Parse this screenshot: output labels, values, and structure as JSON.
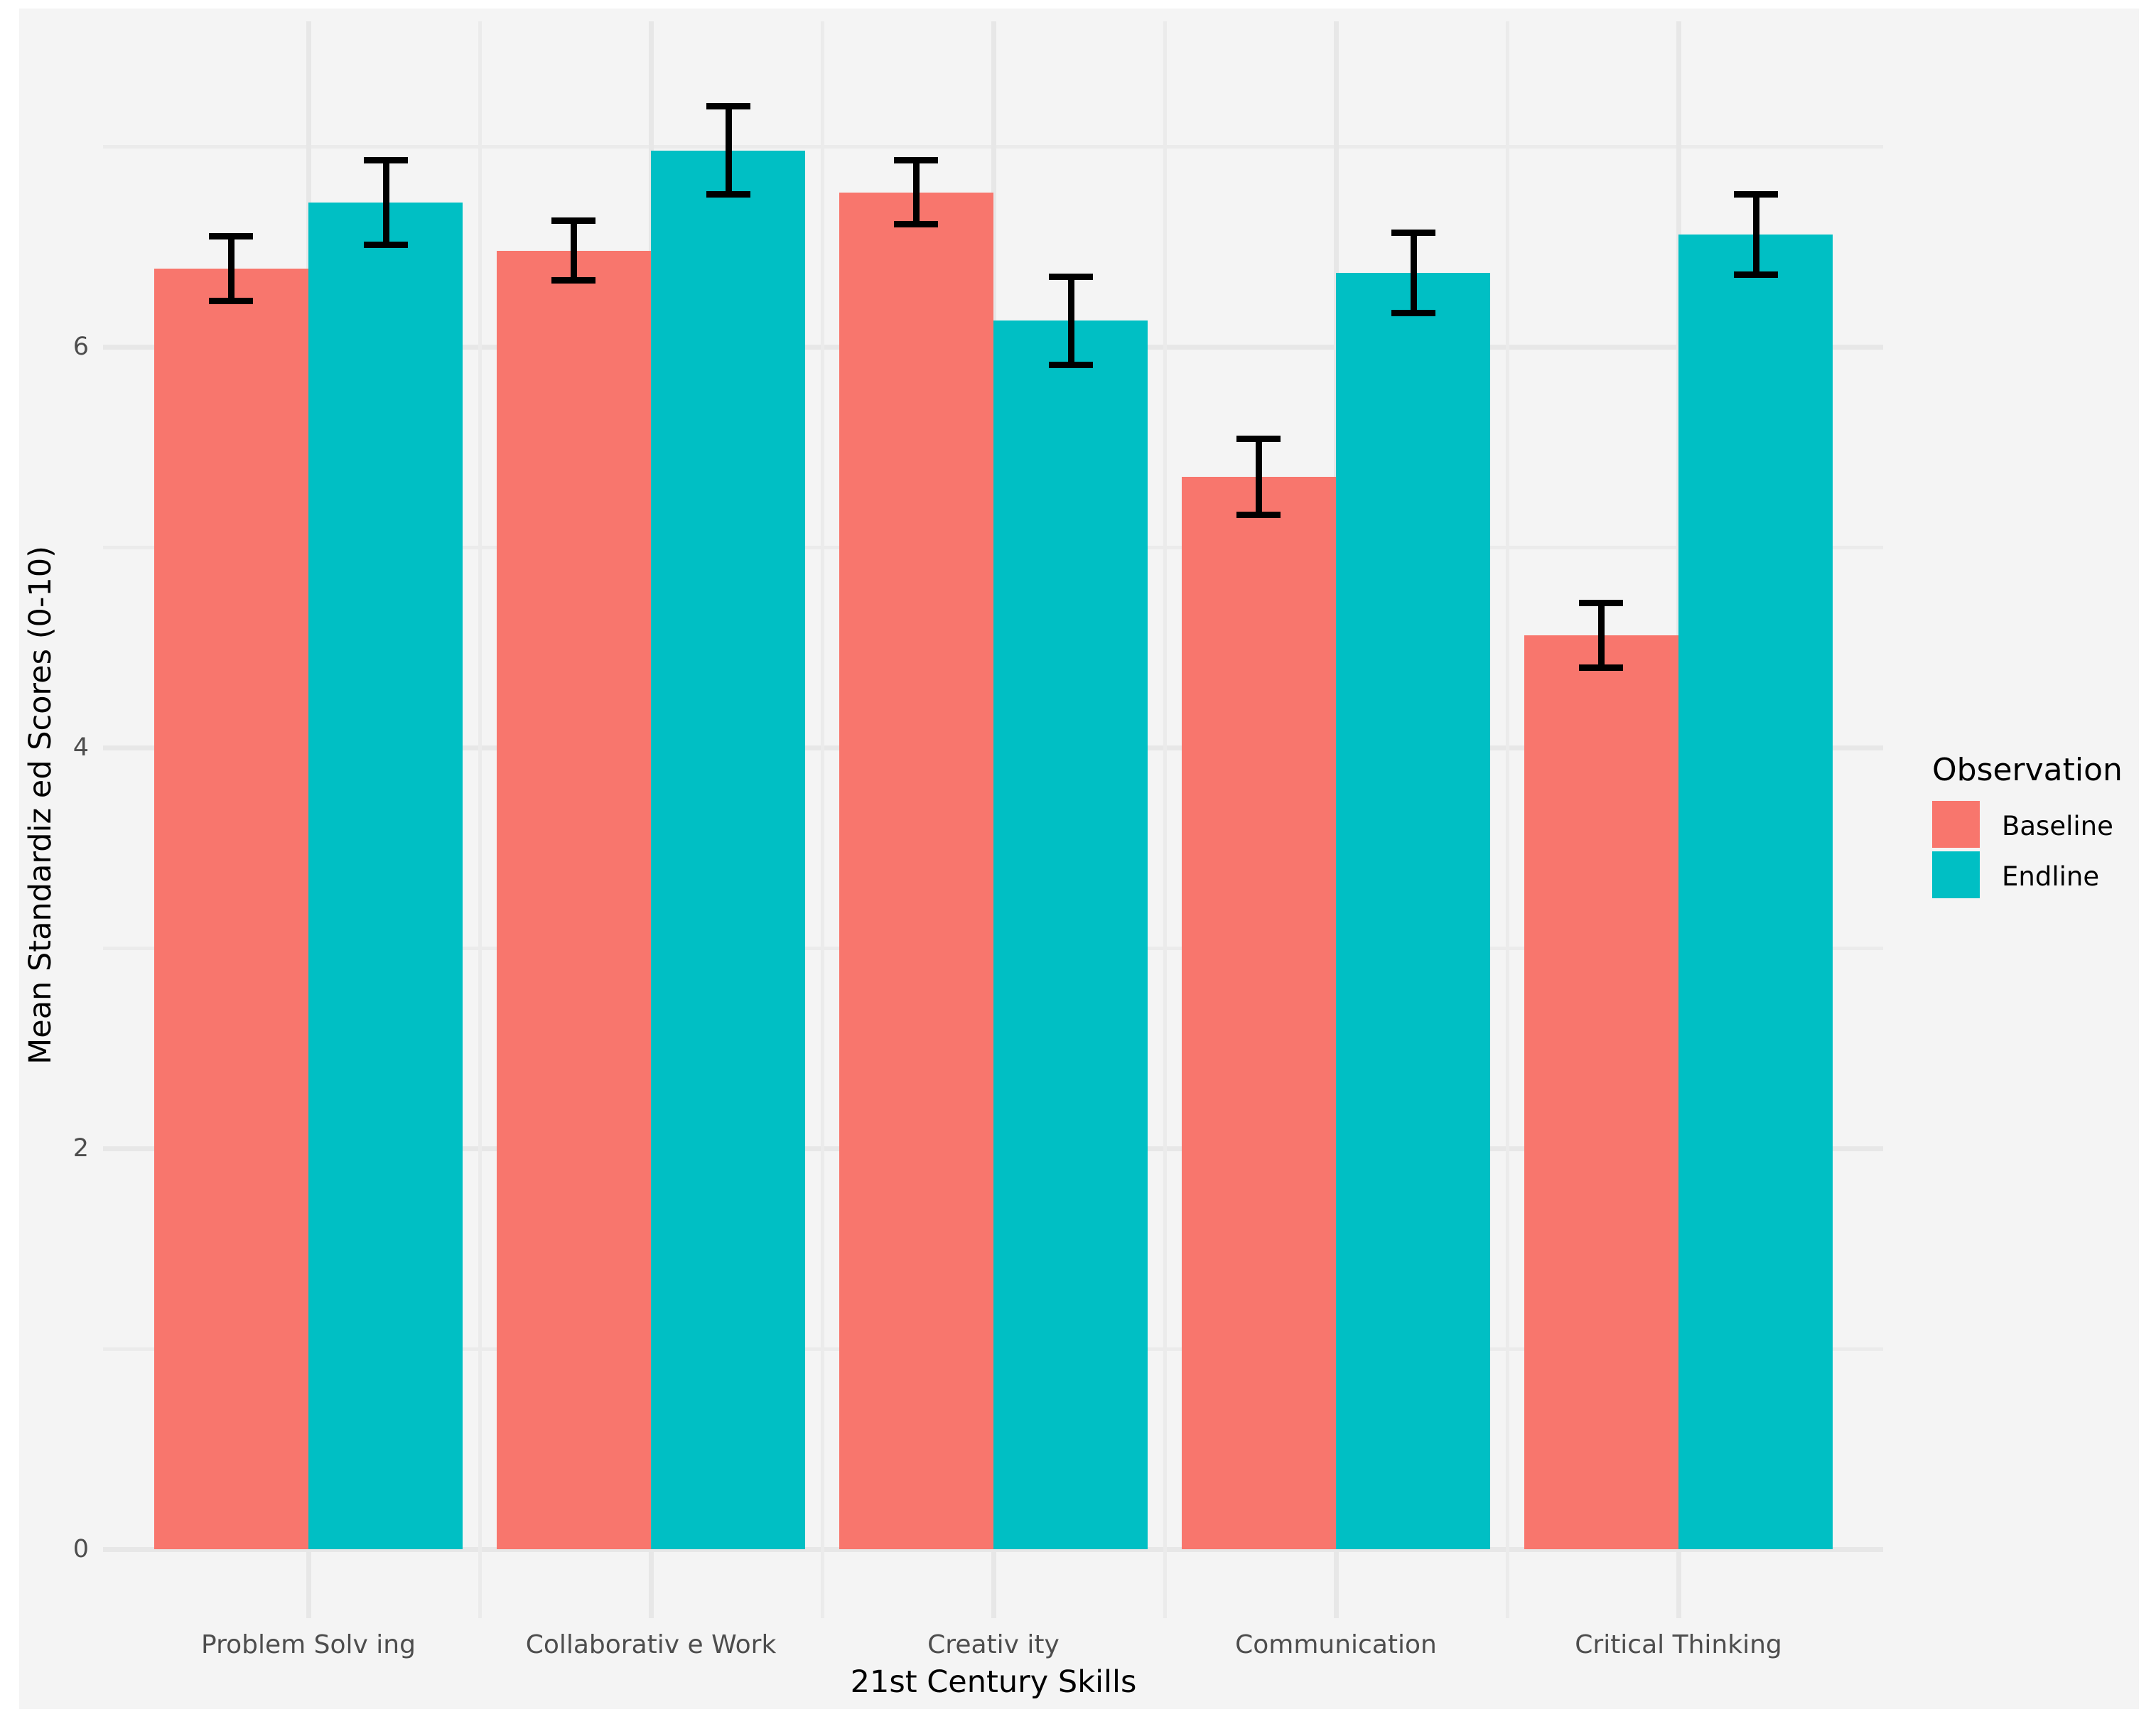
{
  "figure": {
    "background_color": "#F4F4F4",
    "gridline_major_color": "#E7E7E7",
    "gridline_minor_color": "#EBEBEB",
    "errorbar_color": "#000000",
    "tick_text_color": "#4D4D4D",
    "title_text_color": "#000000"
  },
  "x_axis": {
    "title": "21st Century Skills",
    "category_labels": [
      "Problem Solv ing",
      "Collaborativ e Work",
      "Creativ ity",
      "Communication",
      "Critical Thinking"
    ]
  },
  "y_axis": {
    "title": "Mean Standardiz ed Scores (0-10)",
    "tick_labels": [
      "0",
      "2",
      "4",
      "6"
    ],
    "tick_values": [
      0,
      2,
      4,
      6
    ],
    "minor_tick_values": [
      1,
      3,
      5,
      7
    ]
  },
  "legend": {
    "title": "Observation",
    "position": "right",
    "items": [
      {
        "label": "Baseline",
        "color": "#F8766D"
      },
      {
        "label": "Endline",
        "color": "#00BFC4"
      }
    ]
  },
  "chart_data": {
    "type": "bar",
    "subtype": "grouped-vertical-with-error-bars",
    "title": "",
    "xlabel": "21st Century Skills",
    "ylabel": "Mean Standardiz ed Scores (0-10)",
    "categories": [
      "Problem Solv ing",
      "Collaborativ e Work",
      "Creativ ity",
      "Communication",
      "Critical Thinking"
    ],
    "series": [
      {
        "name": "Baseline",
        "color": "#F8766D",
        "values": [
          6.39,
          6.48,
          6.77,
          5.35,
          4.56
        ],
        "error_margins": [
          0.16,
          0.15,
          0.16,
          0.19,
          0.16
        ]
      },
      {
        "name": "Endline",
        "color": "#00BFC4",
        "values": [
          6.72,
          6.98,
          6.13,
          6.37,
          6.56
        ],
        "error_margins": [
          0.21,
          0.22,
          0.22,
          0.2,
          0.2
        ]
      }
    ],
    "ylim": [
      0,
      7.6
    ],
    "grid": "on",
    "legend_position": "right"
  }
}
